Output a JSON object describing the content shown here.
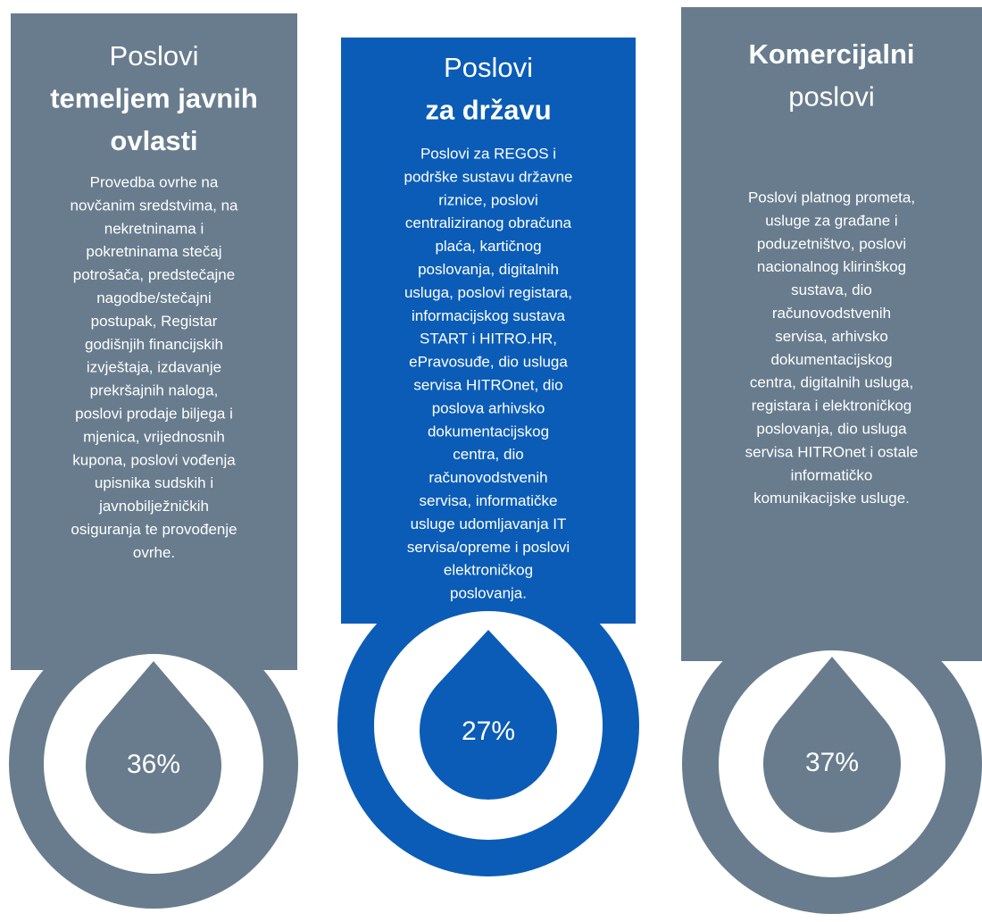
{
  "columns": [
    {
      "title_lines": [
        "Poslovi",
        "temeljem javnih",
        "ovlasti"
      ],
      "description_lines": [
        "Provedba ovrhe na",
        "novčanim sredstvima, na",
        "nekretninama i",
        "pokretninama stečaj",
        "potrošača, predstečajne",
        "nagodbe/stečajni",
        "postupak, Registar",
        "godišnjih financijskih",
        "izvještaja, izdavanje",
        "prekršajnih naloga,",
        "poslovi prodaje biljega i",
        "mjenica, vrijednosnih",
        "kupona, poslovi vođenja",
        "upisnika sudskih i",
        "javnobilježničkih",
        "osiguranja te provođenje",
        "ovrhe."
      ],
      "share": "36%"
    },
    {
      "title_lines": [
        "Poslovi",
        "za državu"
      ],
      "description_lines": [
        "Poslovi za REGOS i",
        "podrške sustavu državne",
        "riznice, poslovi",
        "centraliziranog obračuna",
        "plaća, kartičnog",
        "poslovanja, digitalnih",
        "usluga, poslovi registara,",
        "informacijskog sustava",
        "START i HITRO.HR,",
        "ePravosuđe, dio usluga",
        "servisa HITROnet, dio",
        "poslova arhivsko",
        "dokumentacijskog",
        "centra, dio",
        "računovodstvenih",
        "servisa, informatičke",
        "usluge udomljavanja IT",
        "servisa/opreme i poslovi",
        "elektroničkog",
        "poslovanja."
      ],
      "share": "27%"
    },
    {
      "title_lines": [
        "Komercijalni",
        "poslovi"
      ],
      "description_lines": [
        "Poslovi platnog prometa,",
        "usluge za građane i",
        "poduzetništvo, poslovi",
        "nacionalnog klirinškog",
        "sustava, dio",
        "računovodstvenih",
        "servisa, arhivsko",
        "dokumentacijskog",
        "centra, digitalnih usluga,",
        "registara i elektroničkog",
        "poslovanja, dio usluga",
        "servisa HITROnet i ostale",
        "informatičko",
        "komunikacijske usluge."
      ],
      "share": "37%"
    }
  ]
}
